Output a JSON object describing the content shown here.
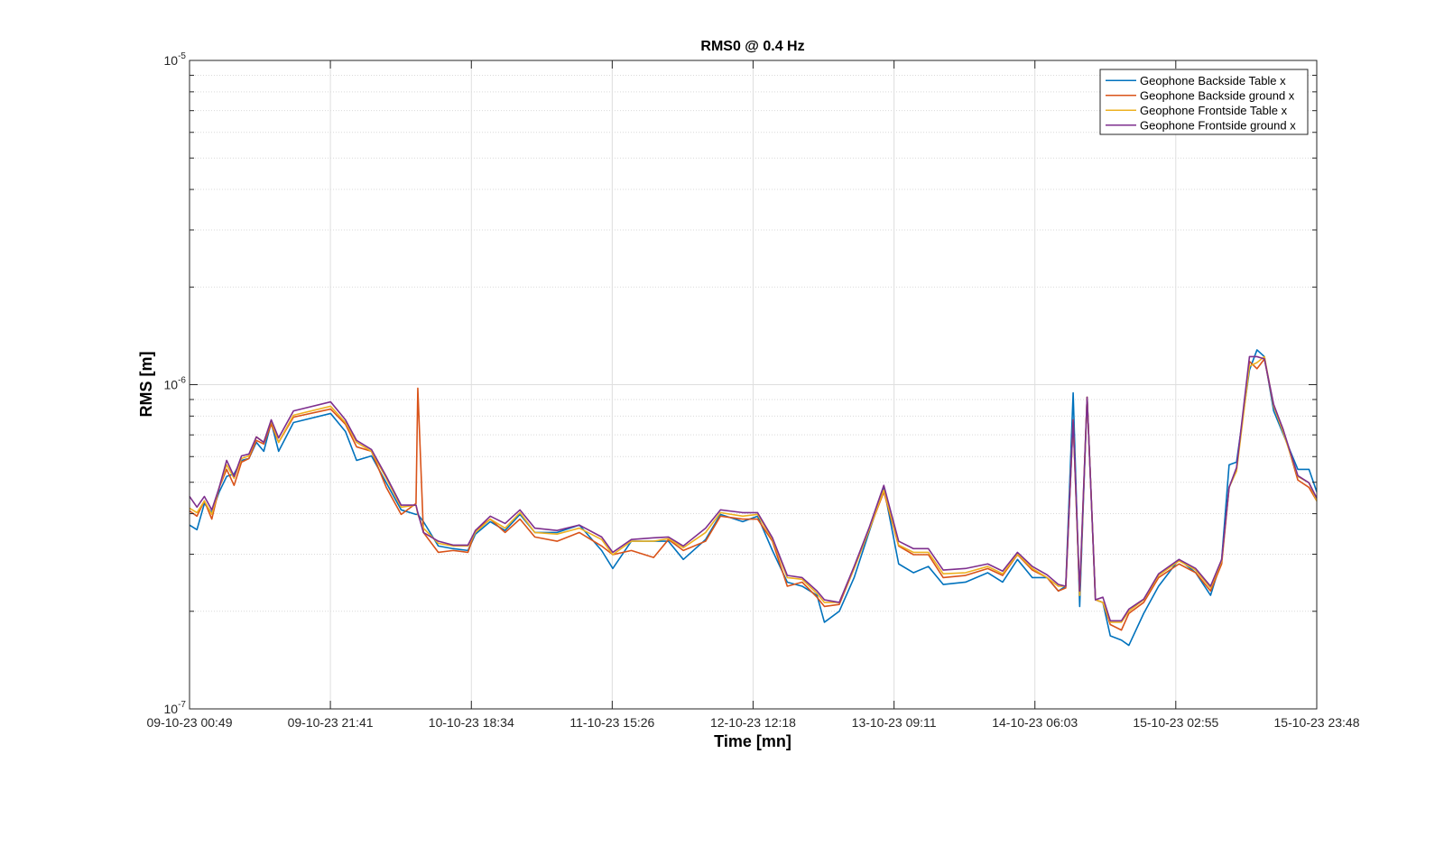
{
  "chart_data": {
    "type": "line",
    "title": "RMS0 @ 0.4 Hz",
    "xlabel": "Time [mn]",
    "ylabel": "RMS [m]",
    "log_y": true,
    "grid": true,
    "minor_grid": true,
    "legend": "northeast",
    "xlim": [
      "09-10-23 00:49",
      "15-10-23 23:48"
    ],
    "xticks": [
      "09-10-23 00:49",
      "09-10-23 21:41",
      "10-10-23 18:34",
      "11-10-23 15:26",
      "12-10-23 12:18",
      "13-10-23 09:11",
      "14-10-23 06:03",
      "15-10-23 02:55",
      "15-10-23 23:48"
    ],
    "ylim": [
      1e-07,
      1e-05
    ],
    "yticks": [
      {
        "value": 1e-07,
        "label": "10-7"
      },
      {
        "value": 1e-06,
        "label": "10-6"
      },
      {
        "value": 1e-05,
        "label": "10-5"
      }
    ],
    "x": [
      "09-10-23 00:49",
      "09-10-23 01:55",
      "09-10-23 03:01",
      "09-10-23 04:07",
      "09-10-23 05:13",
      "09-10-23 06:19",
      "09-10-23 07:25",
      "09-10-23 08:31",
      "09-10-23 09:37",
      "09-10-23 10:43",
      "09-10-23 11:49",
      "09-10-23 12:55",
      "09-10-23 14:01",
      "09-10-23 16:13",
      "09-10-23 21:43",
      "09-10-23 23:55",
      "10-10-23 01:34",
      "10-10-23 03:46",
      "10-10-23 05:58",
      "10-10-23 08:10",
      "10-10-23 10:22",
      "10-10-23 10:38",
      "10-10-23 11:28",
      "10-10-23 13:40",
      "10-10-23 15:52",
      "10-10-23 18:04",
      "10-10-23 19:10",
      "10-10-23 21:22",
      "10-10-23 23:34",
      "11-10-23 01:46",
      "11-10-23 03:58",
      "11-10-23 07:16",
      "11-10-23 10:34",
      "11-10-23 13:52",
      "11-10-23 15:31",
      "11-10-23 18:16",
      "11-10-23 21:34",
      "11-10-23 23:46",
      "12-10-23 01:58",
      "12-10-23 05:16",
      "12-10-23 07:28",
      "12-10-23 10:46",
      "12-10-23 12:58",
      "12-10-23 15:10",
      "12-10-23 17:22",
      "12-10-23 19:34",
      "12-10-23 21:46",
      "12-10-23 22:52",
      "13-10-23 01:04",
      "13-10-23 03:16",
      "13-10-23 05:28",
      "13-10-23 07:40",
      "13-10-23 09:52",
      "13-10-23 12:04",
      "13-10-23 14:16",
      "13-10-23 16:28",
      "13-10-23 19:46",
      "13-10-23 23:04",
      "14-10-23 01:16",
      "14-10-23 03:28",
      "14-10-23 05:40",
      "14-10-23 07:52",
      "14-10-23 09:31",
      "14-10-23 10:37",
      "14-10-23 11:43",
      "14-10-23 12:41",
      "14-10-23 13:47",
      "14-10-23 15:01",
      "14-10-23 16:07",
      "14-10-23 17:13",
      "14-10-23 18:52",
      "14-10-23 19:58",
      "14-10-23 22:10",
      "15-10-23 00:22",
      "15-10-23 03:24",
      "15-10-23 05:52",
      "15-10-23 08:04",
      "15-10-23 09:43",
      "15-10-23 10:49",
      "15-10-23 11:55",
      "15-10-23 13:50",
      "15-10-23 14:57",
      "15-10-23 16:03",
      "15-10-23 17:25",
      "15-10-23 18:47",
      "15-10-23 21:00",
      "15-10-23 22:39",
      "15-10-23 23:48"
    ],
    "series": [
      {
        "name": "Geophone Backside Table x",
        "color": "#0072BD",
        "values": [
          3.69e-07,
          3.57e-07,
          4.3e-07,
          4.03e-07,
          4.67e-07,
          5.21e-07,
          5.31e-07,
          5.84e-07,
          5.92e-07,
          6.64e-07,
          6.23e-07,
          7.64e-07,
          6.23e-07,
          7.64e-07,
          8.15e-07,
          7.17e-07,
          5.84e-07,
          6.03e-07,
          4.98e-07,
          4.11e-07,
          3.98e-07,
          3.98e-07,
          3.78e-07,
          3.18e-07,
          3.12e-07,
          3.08e-07,
          3.46e-07,
          3.78e-07,
          3.55e-07,
          3.98e-07,
          3.5e-07,
          3.5e-07,
          3.69e-07,
          3.08e-07,
          2.71e-07,
          3.29e-07,
          3.29e-07,
          3.29e-07,
          2.89e-07,
          3.33e-07,
          3.98e-07,
          3.78e-07,
          3.93e-07,
          3.08e-07,
          2.46e-07,
          2.39e-07,
          2.24e-07,
          1.85e-07,
          2e-07,
          2.54e-07,
          3.5e-07,
          4.82e-07,
          2.8e-07,
          2.63e-07,
          2.75e-07,
          2.42e-07,
          2.46e-07,
          2.63e-07,
          2.46e-07,
          2.89e-07,
          2.54e-07,
          2.54e-07,
          2.31e-07,
          2.39e-07,
          9.44e-07,
          2.07e-07,
          9.15e-07,
          2.17e-07,
          2.13e-07,
          1.68e-07,
          1.63e-07,
          1.57e-07,
          1.97e-07,
          2.39e-07,
          2.89e-07,
          2.63e-07,
          2.24e-07,
          2.89e-07,
          5.66e-07,
          5.77e-07,
          1.11e-06,
          1.28e-06,
          1.22e-06,
          8.3e-07,
          7.08e-07,
          5.48e-07,
          5.48e-07,
          4.67e-07
        ]
      },
      {
        "name": "Geophone Backside ground x",
        "color": "#D95319",
        "values": [
          4.08e-07,
          3.93e-07,
          4.38e-07,
          3.85e-07,
          4.82e-07,
          5.48e-07,
          4.89e-07,
          5.77e-07,
          5.92e-07,
          6.73e-07,
          6.56e-07,
          7.55e-07,
          6.64e-07,
          7.94e-07,
          8.41e-07,
          7.55e-07,
          6.43e-07,
          6.23e-07,
          4.82e-07,
          3.98e-07,
          4.3e-07,
          9.75e-07,
          3.5e-07,
          3.04e-07,
          3.08e-07,
          3.04e-07,
          3.55e-07,
          3.85e-07,
          3.5e-07,
          3.85e-07,
          3.39e-07,
          3.29e-07,
          3.5e-07,
          3.18e-07,
          2.99e-07,
          3.08e-07,
          2.93e-07,
          3.33e-07,
          3.08e-07,
          3.29e-07,
          3.93e-07,
          3.85e-07,
          3.85e-07,
          3.29e-07,
          2.39e-07,
          2.46e-07,
          2.21e-07,
          2.07e-07,
          2.1e-07,
          2.71e-07,
          3.55e-07,
          4.67e-07,
          3.18e-07,
          2.99e-07,
          2.99e-07,
          2.54e-07,
          2.58e-07,
          2.71e-07,
          2.58e-07,
          2.99e-07,
          2.68e-07,
          2.54e-07,
          2.31e-07,
          2.36e-07,
          7.79e-07,
          2.24e-07,
          9.15e-07,
          2.17e-07,
          2.13e-07,
          1.82e-07,
          1.75e-07,
          1.97e-07,
          2.13e-07,
          2.54e-07,
          2.8e-07,
          2.63e-07,
          2.31e-07,
          2.8e-07,
          4.82e-07,
          5.48e-07,
          1.18e-06,
          1.12e-06,
          1.2e-06,
          8.58e-07,
          7.31e-07,
          5.08e-07,
          4.82e-07,
          4.38e-07
        ]
      },
      {
        "name": "Geophone Frontside Table x",
        "color": "#EDB120",
        "values": [
          4.16e-07,
          4.03e-07,
          4.38e-07,
          3.98e-07,
          4.82e-07,
          5.66e-07,
          5.14e-07,
          5.92e-07,
          6.03e-07,
          6.9e-07,
          6.64e-07,
          7.74e-07,
          6.64e-07,
          8.05e-07,
          8.58e-07,
          7.64e-07,
          6.64e-07,
          6.23e-07,
          5.14e-07,
          4.19e-07,
          4.25e-07,
          3.98e-07,
          3.61e-07,
          3.24e-07,
          3.18e-07,
          3.18e-07,
          3.5e-07,
          3.85e-07,
          3.61e-07,
          4.03e-07,
          3.5e-07,
          3.46e-07,
          3.61e-07,
          3.33e-07,
          2.99e-07,
          3.29e-07,
          3.29e-07,
          3.35e-07,
          3.14e-07,
          3.5e-07,
          4.03e-07,
          3.93e-07,
          3.98e-07,
          3.33e-07,
          2.54e-07,
          2.51e-07,
          2.27e-07,
          2.13e-07,
          2.13e-07,
          2.71e-07,
          3.55e-07,
          4.73e-07,
          3.2e-07,
          3.04e-07,
          3.04e-07,
          2.61e-07,
          2.63e-07,
          2.75e-07,
          2.61e-07,
          3e-07,
          2.71e-07,
          2.54e-07,
          2.39e-07,
          2.39e-07,
          7.79e-07,
          2.24e-07,
          9.15e-07,
          2.17e-07,
          2.13e-07,
          1.85e-07,
          1.85e-07,
          2e-07,
          2.17e-07,
          2.58e-07,
          2.86e-07,
          2.68e-07,
          2.36e-07,
          2.86e-07,
          4.82e-07,
          5.41e-07,
          1.14e-06,
          1.17e-06,
          1.22e-06,
          8.58e-07,
          7.17e-07,
          5.21e-07,
          4.98e-07,
          4.38e-07
        ]
      },
      {
        "name": "Geophone Frontside ground x",
        "color": "#7E2F8E",
        "values": [
          4.52e-07,
          4.19e-07,
          4.52e-07,
          4.11e-07,
          4.82e-07,
          5.84e-07,
          5.21e-07,
          6.03e-07,
          6.11e-07,
          6.9e-07,
          6.64e-07,
          7.79e-07,
          6.85e-07,
          8.3e-07,
          8.85e-07,
          7.79e-07,
          6.73e-07,
          6.31e-07,
          5.21e-07,
          4.25e-07,
          4.25e-07,
          4.03e-07,
          3.5e-07,
          3.29e-07,
          3.2e-07,
          3.2e-07,
          3.55e-07,
          3.93e-07,
          3.73e-07,
          4.11e-07,
          3.61e-07,
          3.55e-07,
          3.69e-07,
          3.39e-07,
          3.04e-07,
          3.33e-07,
          3.37e-07,
          3.39e-07,
          3.18e-07,
          3.61e-07,
          4.11e-07,
          4.03e-07,
          4.03e-07,
          3.37e-07,
          2.58e-07,
          2.54e-07,
          2.31e-07,
          2.17e-07,
          2.13e-07,
          2.75e-07,
          3.61e-07,
          4.89e-07,
          3.29e-07,
          3.12e-07,
          3.12e-07,
          2.68e-07,
          2.71e-07,
          2.8e-07,
          2.66e-07,
          3.04e-07,
          2.75e-07,
          2.59e-07,
          2.42e-07,
          2.39e-07,
          7.79e-07,
          2.31e-07,
          9.15e-07,
          2.17e-07,
          2.21e-07,
          1.87e-07,
          1.87e-07,
          2.03e-07,
          2.18e-07,
          2.61e-07,
          2.89e-07,
          2.71e-07,
          2.39e-07,
          2.89e-07,
          4.82e-07,
          5.55e-07,
          1.22e-06,
          1.22e-06,
          1.2e-06,
          8.69e-07,
          7.31e-07,
          5.24e-07,
          4.98e-07,
          4.47e-07
        ]
      }
    ]
  }
}
